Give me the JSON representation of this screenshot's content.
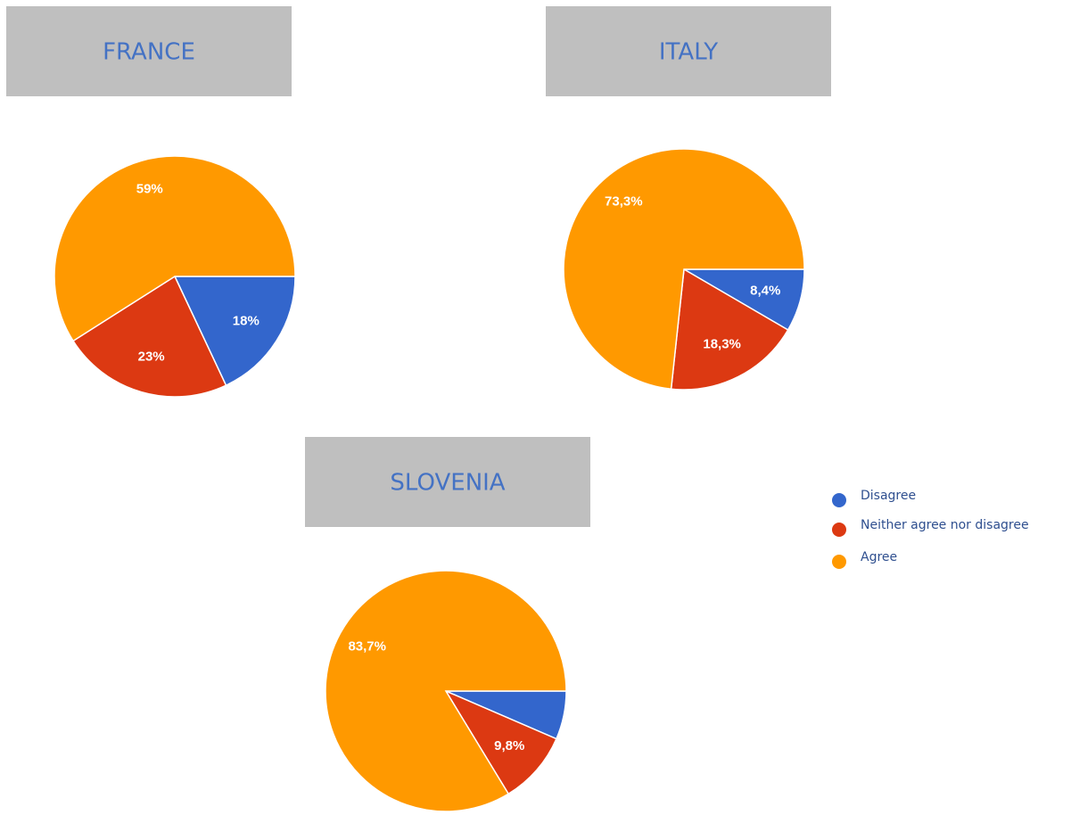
{
  "legend": {
    "labels": [
      "Disagree",
      "Neither agree nor disagree",
      "Agree"
    ],
    "colors": [
      "#3366cc",
      "#dc3912",
      "#ff9900"
    ]
  },
  "chart_data": [
    {
      "type": "pie",
      "title": "FRANCE",
      "values": [
        18,
        23,
        59
      ],
      "value_labels": [
        "18%",
        "23%",
        "59%"
      ]
    },
    {
      "type": "pie",
      "title": "ITALY",
      "values": [
        8.4,
        18.3,
        73.3
      ],
      "value_labels": [
        "8,4%",
        "18,3%",
        "73,3%"
      ]
    },
    {
      "type": "pie",
      "title": "SLOVENIA",
      "values": [
        6.5,
        9.8,
        83.7
      ],
      "value_labels": [
        null,
        "9,8%",
        "83,7%"
      ]
    }
  ]
}
